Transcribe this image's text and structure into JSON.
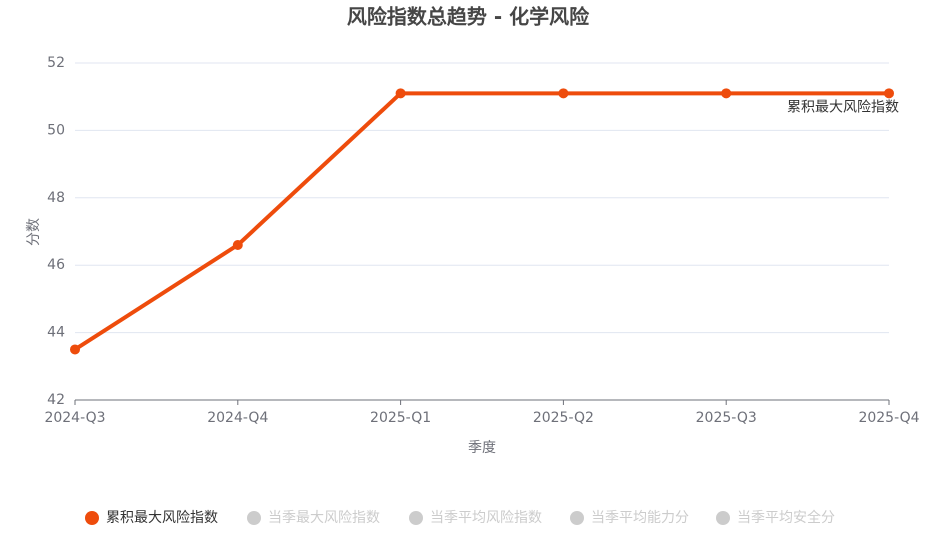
{
  "chart_data": {
    "type": "line",
    "title": "风险指数总趋势 - 化学风险",
    "x_label": "季度",
    "y_label": "分数",
    "categories": [
      "2024-Q3",
      "2024-Q4",
      "2025-Q1",
      "2025-Q2",
      "2025-Q3",
      "2025-Q4"
    ],
    "series": [
      {
        "name": "累积最大风险指数",
        "color": "#ee4c0c",
        "values": [
          43.5,
          46.6,
          51.1,
          51.1,
          51.1,
          51.1
        ]
      },
      {
        "name": "当季最大风险指数",
        "color": "#cccccc",
        "hidden": true,
        "values": [
          null,
          null,
          null,
          null,
          null,
          null
        ]
      },
      {
        "name": "当季平均风险指数",
        "color": "#cccccc",
        "hidden": true,
        "values": [
          null,
          null,
          null,
          null,
          null,
          null
        ]
      },
      {
        "name": "当季平均能力分",
        "color": "#cccccc",
        "hidden": true,
        "values": [
          null,
          null,
          null,
          null,
          null,
          null
        ]
      },
      {
        "name": "当季平均安全分",
        "color": "#cccccc",
        "hidden": true,
        "values": [
          null,
          null,
          null,
          null,
          null,
          null
        ]
      }
    ],
    "ylim": [
      42,
      52
    ],
    "yticks": [
      42,
      44,
      46,
      48,
      50,
      52
    ],
    "grid": true,
    "legend": "bottom"
  }
}
